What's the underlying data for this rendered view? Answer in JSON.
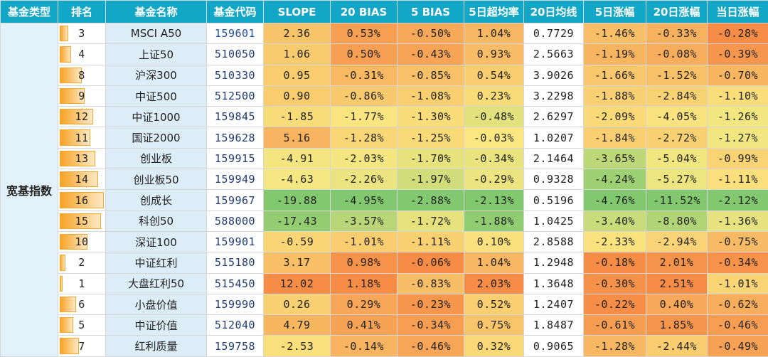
{
  "headers": [
    "基金类型",
    "排名",
    "基金名称",
    "基金代码",
    "SLOPE",
    "20 BIAS",
    "5 BIAS",
    "5日超均率",
    "20日均线",
    "5日涨幅",
    "20日涨幅",
    "当日涨幅"
  ],
  "category": "宽基指数",
  "rows": [
    {
      "rank": "3",
      "name": "MSCI A50",
      "code": "159601",
      "slope": "2.36",
      "bias20": "0.53%",
      "bias5": "-0.50%",
      "excess5": "1.04%",
      "ma20": "0.7729",
      "chg5": "-1.46%",
      "chg20": "-0.33%",
      "chg1": "-0.28%"
    },
    {
      "rank": "4",
      "name": "上证50",
      "code": "510050",
      "slope": "1.06",
      "bias20": "0.50%",
      "bias5": "-0.43%",
      "excess5": "0.93%",
      "ma20": "2.5663",
      "chg5": "-1.19%",
      "chg20": "-0.08%",
      "chg1": "-0.39%"
    },
    {
      "rank": "8",
      "name": "沪深300",
      "code": "510330",
      "slope": "0.95",
      "bias20": "-0.31%",
      "bias5": "-0.85%",
      "excess5": "0.54%",
      "ma20": "3.9026",
      "chg5": "-1.66%",
      "chg20": "-1.52%",
      "chg1": "-0.70%"
    },
    {
      "rank": "9",
      "name": "中证500",
      "code": "512500",
      "slope": "0.90",
      "bias20": "-0.86%",
      "bias5": "-1.08%",
      "excess5": "0.23%",
      "ma20": "3.2298",
      "chg5": "-1.88%",
      "chg20": "-2.84%",
      "chg1": "-1.10%"
    },
    {
      "rank": "12",
      "name": "中证1000",
      "code": "159845",
      "slope": "-1.85",
      "bias20": "-1.77%",
      "bias5": "-1.30%",
      "excess5": "-0.48%",
      "ma20": "2.6297",
      "chg5": "-2.09%",
      "chg20": "-4.05%",
      "chg1": "-1.26%"
    },
    {
      "rank": "11",
      "name": "国证2000",
      "code": "159628",
      "slope": "5.16",
      "bias20": "-1.28%",
      "bias5": "-1.25%",
      "excess5": "-0.03%",
      "ma20": "1.0207",
      "chg5": "-1.84%",
      "chg20": "-2.72%",
      "chg1": "-1.27%"
    },
    {
      "rank": "13",
      "name": "创业板",
      "code": "159915",
      "slope": "-4.91",
      "bias20": "-2.03%",
      "bias5": "-1.70%",
      "excess5": "-0.34%",
      "ma20": "2.1464",
      "chg5": "-3.65%",
      "chg20": "-5.04%",
      "chg1": "-0.99%"
    },
    {
      "rank": "14",
      "name": "创业板50",
      "code": "159949",
      "slope": "-4.63",
      "bias20": "-2.26%",
      "bias5": "-1.97%",
      "excess5": "-0.29%",
      "ma20": "0.9328",
      "chg5": "-4.24%",
      "chg20": "-5.27%",
      "chg1": "-1.11%"
    },
    {
      "rank": "16",
      "name": "创成长",
      "code": "159967",
      "slope": "-19.88",
      "bias20": "-4.95%",
      "bias5": "-2.88%",
      "excess5": "-2.13%",
      "ma20": "0.5196",
      "chg5": "-4.76%",
      "chg20": "-11.52%",
      "chg1": "-2.12%"
    },
    {
      "rank": "15",
      "name": "科创50",
      "code": "588000",
      "slope": "-17.43",
      "bias20": "-3.57%",
      "bias5": "-1.72%",
      "excess5": "-1.88%",
      "ma20": "1.0425",
      "chg5": "-3.40%",
      "chg20": "-8.80%",
      "chg1": "-1.36%"
    },
    {
      "rank": "10",
      "name": "深证100",
      "code": "159901",
      "slope": "-0.59",
      "bias20": "-1.01%",
      "bias5": "-1.11%",
      "excess5": "0.10%",
      "ma20": "2.8588",
      "chg5": "-2.33%",
      "chg20": "-2.94%",
      "chg1": "-0.75%"
    },
    {
      "rank": "2",
      "name": "中证红利",
      "code": "515180",
      "slope": "3.17",
      "bias20": "0.98%",
      "bias5": "-0.06%",
      "excess5": "1.04%",
      "ma20": "1.2948",
      "chg5": "-0.18%",
      "chg20": "2.01%",
      "chg1": "-0.34%"
    },
    {
      "rank": "1",
      "name": "大盘红利50",
      "code": "515450",
      "slope": "12.02",
      "bias20": "1.18%",
      "bias5": "-0.83%",
      "excess5": "2.03%",
      "ma20": "1.3648",
      "chg5": "-0.30%",
      "chg20": "2.51%",
      "chg1": "-1.01%"
    },
    {
      "rank": "6",
      "name": "小盘价值",
      "code": "159990",
      "slope": "0.26",
      "bias20": "0.29%",
      "bias5": "-0.23%",
      "excess5": "0.52%",
      "ma20": "1.2407",
      "chg5": "-0.22%",
      "chg20": "0.40%",
      "chg1": "-0.62%"
    },
    {
      "rank": "5",
      "name": "中证价值",
      "code": "512040",
      "slope": "4.79",
      "bias20": "0.41%",
      "bias5": "-0.34%",
      "excess5": "0.75%",
      "ma20": "1.8487",
      "chg5": "-0.61%",
      "chg20": "1.85%",
      "chg1": "-0.46%"
    },
    {
      "rank": "7",
      "name": "红利质量",
      "code": "159758",
      "slope": "-2.53",
      "bias20": "-0.14%",
      "bias5": "-0.46%",
      "excess5": "0.32%",
      "ma20": "0.9065",
      "chg5": "-1.28%",
      "chg20": "-2.44%",
      "chg1": "-0.49%"
    }
  ]
}
